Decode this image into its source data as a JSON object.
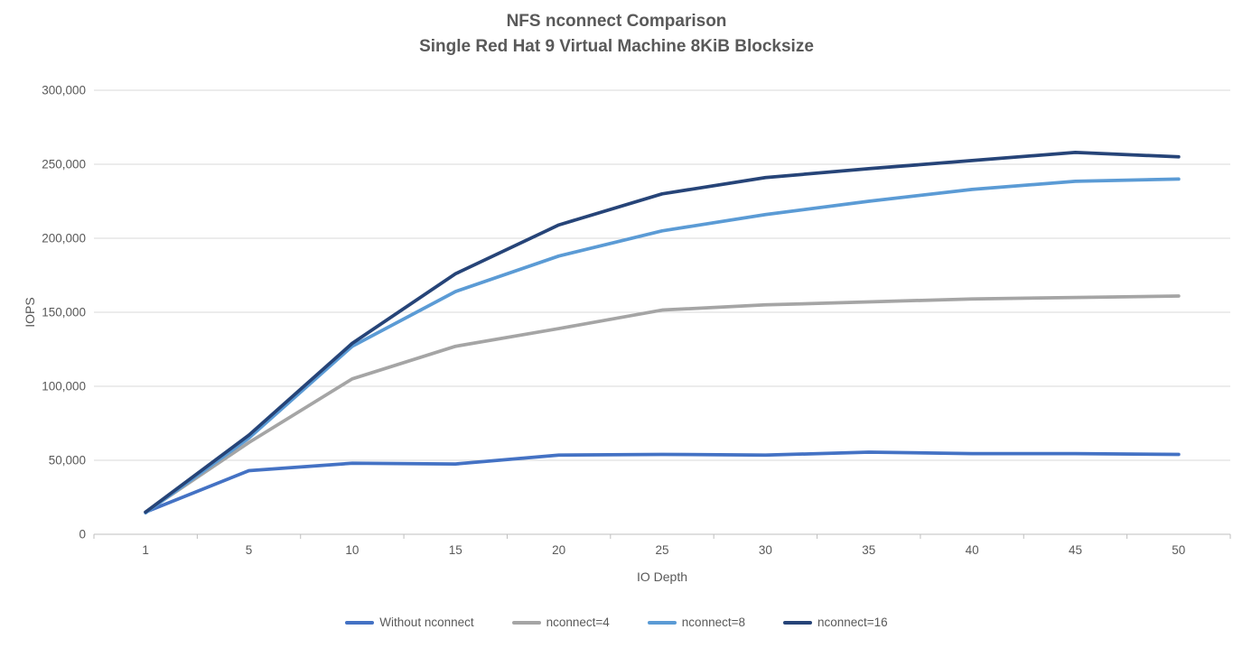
{
  "chart_data": {
    "type": "line",
    "title_line1": "NFS nconnect Comparison",
    "title_line2": "Single Red Hat 9 Virtual Machine 8KiB Blocksize",
    "xlabel": "IO Depth",
    "ylabel": "IOPS",
    "categories": [
      "1",
      "5",
      "10",
      "15",
      "20",
      "25",
      "30",
      "35",
      "40",
      "45",
      "50"
    ],
    "y_ticks": [
      "0",
      "50,000",
      "100,000",
      "150,000",
      "200,000",
      "250,000",
      "300,000"
    ],
    "ylim": [
      0,
      300000
    ],
    "grid": "horizontal-only",
    "legend_position": "bottom-center",
    "axis_color": "#BFBFBF",
    "gridline_color": "#D9D9D9",
    "label_color": "#595959",
    "series": [
      {
        "name": "Without nconnect",
        "color": "#4472C4",
        "values": [
          15000,
          43000,
          48000,
          47500,
          53500,
          54000,
          53500,
          55500,
          54500,
          54500,
          54000
        ]
      },
      {
        "name": "nconnect=4",
        "color": "#A5A5A5",
        "values": [
          15000,
          62000,
          105000,
          127000,
          139000,
          151500,
          155000,
          157000,
          159000,
          160000,
          161000
        ]
      },
      {
        "name": "nconnect=8",
        "color": "#5B9BD5",
        "values": [
          14500,
          65000,
          127000,
          164000,
          188000,
          205000,
          216000,
          225000,
          233000,
          238500,
          240000
        ]
      },
      {
        "name": "nconnect=16",
        "color": "#264478",
        "values": [
          15000,
          67000,
          129000,
          176000,
          209000,
          230000,
          241000,
          247000,
          252500,
          258000,
          255000
        ]
      }
    ]
  }
}
